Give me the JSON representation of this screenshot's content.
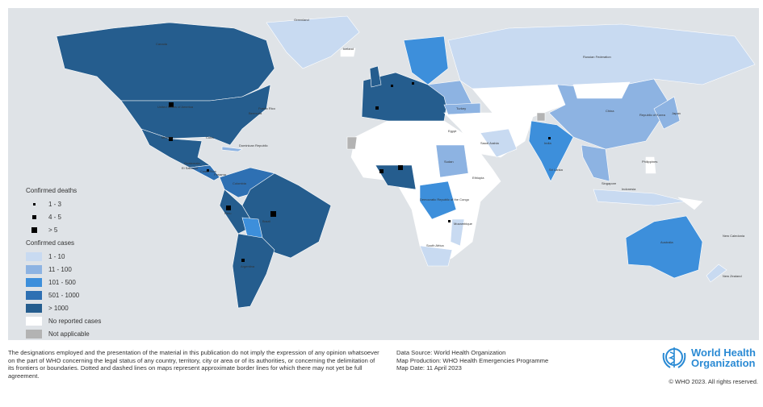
{
  "legend": {
    "deaths_title": "Confirmed deaths",
    "deaths": [
      {
        "label": "1 - 3"
      },
      {
        "label": "4 - 5"
      },
      {
        "label": "> 5"
      }
    ],
    "cases_title": "Confirmed cases",
    "cases": [
      {
        "label": "1 - 10",
        "color": "#c8daf1"
      },
      {
        "label": "11 - 100",
        "color": "#8db3e2"
      },
      {
        "label": "101 - 500",
        "color": "#3d8fdb"
      },
      {
        "label": "501 - 1000",
        "color": "#2e70b3"
      },
      {
        "label": "> 1000",
        "color": "#255d8e"
      },
      {
        "label": "No reported cases",
        "color": "#ffffff"
      },
      {
        "label": "Not applicable",
        "color": "#b3b3b3"
      }
    ]
  },
  "labels": [
    "Greenland",
    "Iceland",
    "Russian Federation",
    "Canada",
    "United States of America",
    "Mexico",
    "Cuba",
    "Brazil",
    "Peru",
    "Argentina",
    "Colombia",
    "China",
    "India",
    "Australia",
    "New Zealand",
    "Sudan",
    "Democratic Republic of the Congo",
    "South Africa",
    "Mozambique",
    "Sri Lanka",
    "Philippines",
    "Singapore",
    "Indonesia",
    "Japan",
    "New Caledonia",
    "Bermuda",
    "Puerto Rico",
    "Dominican Republic",
    "Guatemala",
    "El Salvador",
    "Costa Rica",
    "Panama",
    "Saudi Arabia",
    "Egypt",
    "Turkey",
    "Ethiopia",
    "Republic of Korea"
  ],
  "footer": {
    "disclaimer": "The designations employed and the presentation of the material in this publication do not imply the expression of any opinion whatsoever on the part of WHO concerning the legal status of any country, territory, city or area or of its authorities, or concerning the delimitation of its frontiers or boundaries. Dotted and dashed lines on maps represent approximate border lines for which there may not yet be full agreement.",
    "data_source": "Data Source: World Health Organization",
    "map_production": "Map Production: WHO Health Emergencies Programme",
    "map_date": "Map Date: 11 April 2023",
    "logo_line1": "World Health",
    "logo_line2": "Organization",
    "copyright": "© WHO 2023. All rights reserved."
  }
}
